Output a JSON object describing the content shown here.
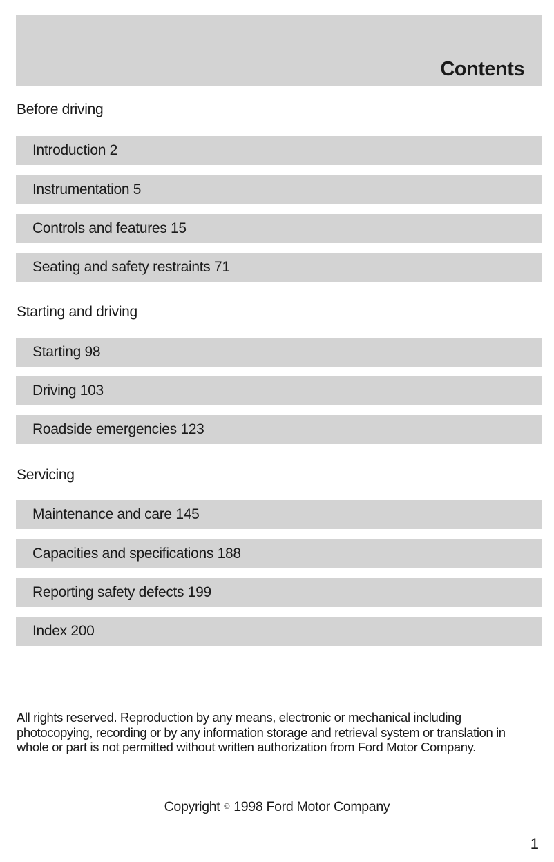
{
  "header": {
    "title": "Contents"
  },
  "sections": [
    {
      "label": "Before driving",
      "items": [
        "Introduction 2",
        "Instrumentation 5",
        "Controls and features 15",
        "Seating and safety restraints 71"
      ]
    },
    {
      "label": "Starting and driving",
      "items": [
        "Starting 98",
        "Driving 103",
        "Roadside emergencies 123"
      ]
    },
    {
      "label": "Servicing",
      "items": [
        "Maintenance and care 145",
        "Capacities and specifications 188",
        "Reporting safety defects 199",
        "Index 200"
      ]
    }
  ],
  "footer": {
    "notice": "All rights reserved. Reproduction by any means, electronic or mechanical including photocopying, recording or by any information storage and retrieval system or translation in whole or part is not permitted without written authorization from Ford Motor Company.",
    "copyright_prefix": "Copyright",
    "copyright_symbol": "©",
    "copyright_suffix": "1998 Ford Motor Company",
    "page_number": "1"
  },
  "colors": {
    "band": "#d3d3d3",
    "text": "#1a1a1a"
  }
}
